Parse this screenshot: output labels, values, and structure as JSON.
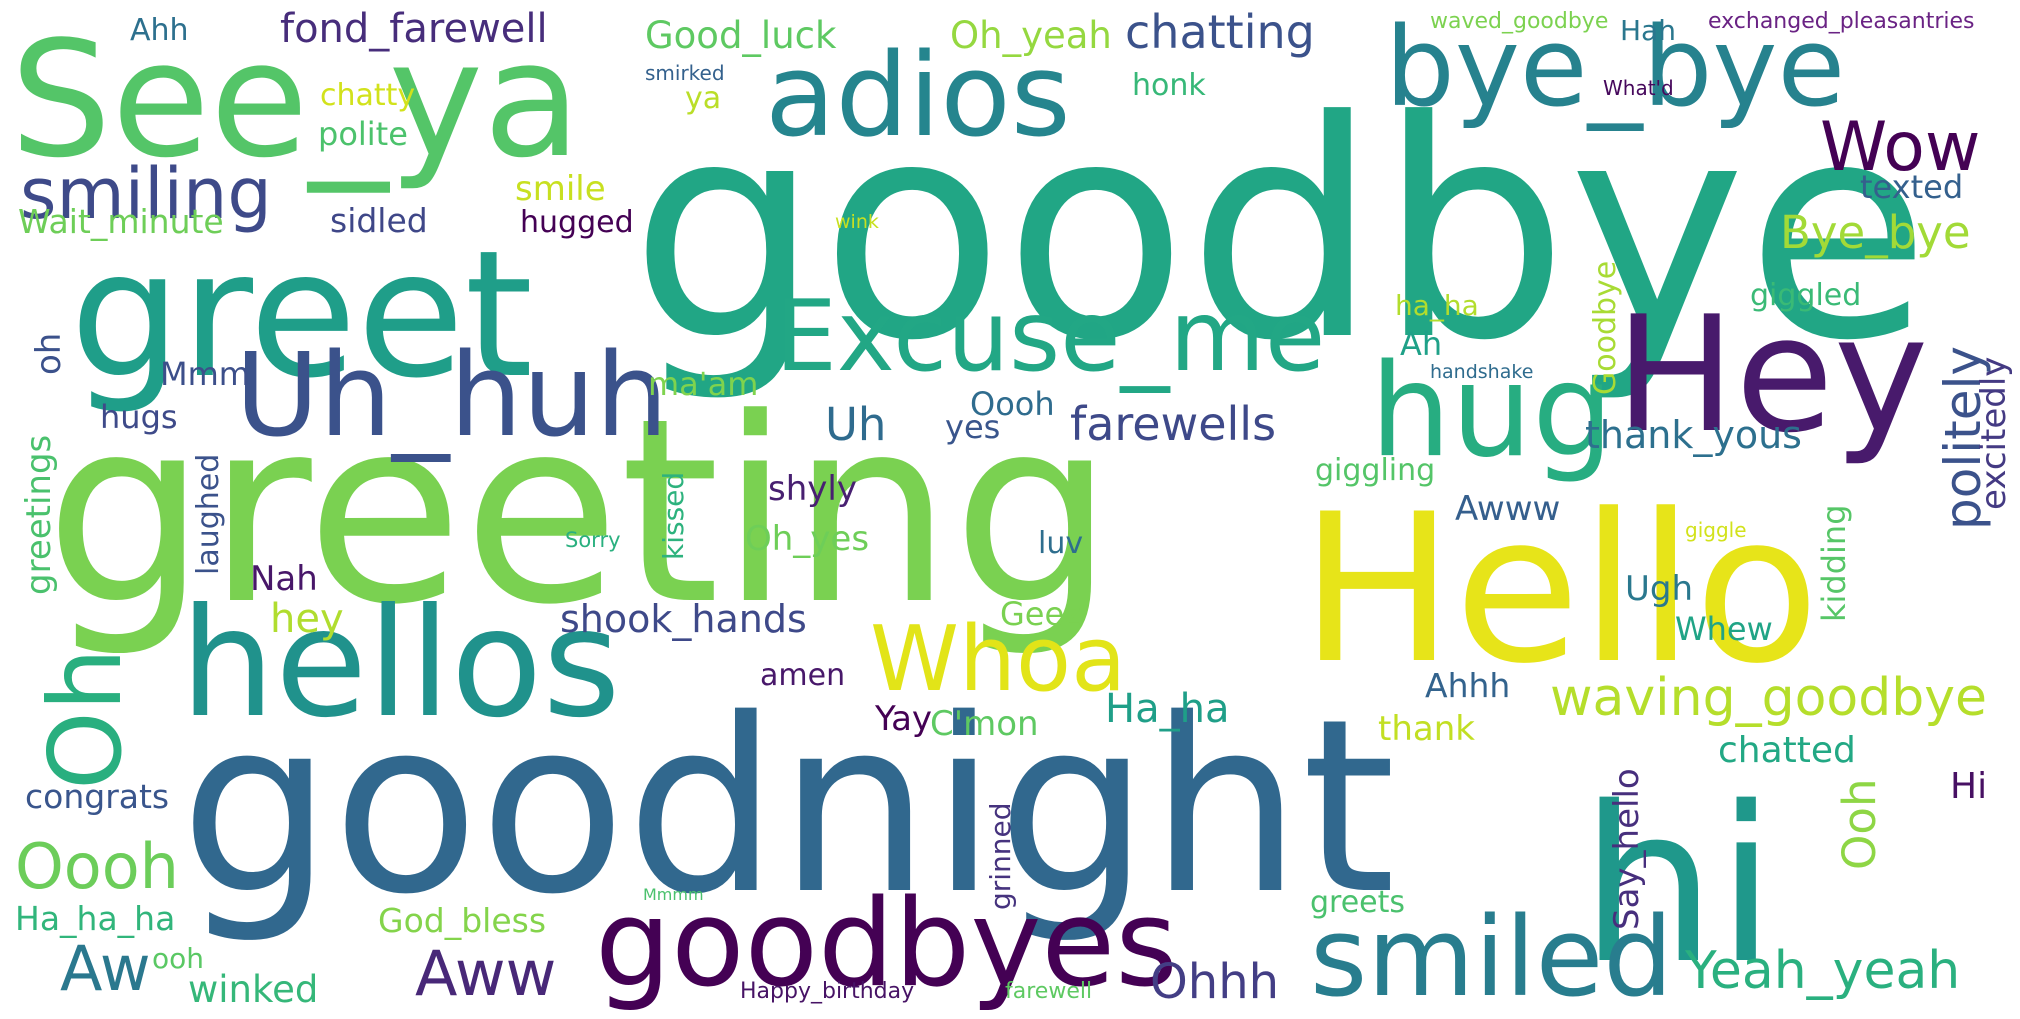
{
  "words": [
    {
      "text": "goodbye",
      "color": "#21a685"
    },
    {
      "text": "greeting",
      "color": "#7ad151"
    },
    {
      "text": "goodnight",
      "color": "#31688e"
    },
    {
      "text": "Hello",
      "color": "#e7e419"
    },
    {
      "text": "hi",
      "color": "#1f988b"
    },
    {
      "text": "See_ya",
      "color": "#54c568"
    },
    {
      "text": "greet",
      "color": "#1f9e89"
    },
    {
      "text": "hellos",
      "color": "#20928c"
    },
    {
      "text": "Hey",
      "color": "#481a6c"
    },
    {
      "text": "adios",
      "color": "#25858e"
    },
    {
      "text": "bye_bye",
      "color": "#26828e"
    },
    {
      "text": "Uh_huh",
      "color": "#3b528b"
    },
    {
      "text": "Excuse_me",
      "color": "#22a785"
    },
    {
      "text": "hug",
      "color": "#27ad81"
    },
    {
      "text": "goodbyes",
      "color": "#440154"
    },
    {
      "text": "smiled",
      "color": "#287d8e"
    },
    {
      "text": "Whoa",
      "color": "#e2e418"
    },
    {
      "text": "Oh",
      "color": "#29af7f"
    },
    {
      "text": "smiling",
      "color": "#3e4a89"
    },
    {
      "text": "Wow",
      "color": "#440154"
    },
    {
      "text": "Oooh",
      "color": "#6ccd5a"
    },
    {
      "text": "waving_goodbye",
      "color": "#b5de2b"
    },
    {
      "text": "Yeah_yeah",
      "color": "#2ab07f"
    },
    {
      "text": "Aw",
      "color": "#2a788e"
    },
    {
      "text": "Aww",
      "color": "#482878"
    },
    {
      "text": "chatting",
      "color": "#3b528b"
    },
    {
      "text": "fond_farewell",
      "color": "#472d7b"
    },
    {
      "text": "farewells",
      "color": "#3e4989"
    },
    {
      "text": "politely",
      "color": "#3b528b"
    },
    {
      "text": "Bye_bye",
      "color": "#a2da37"
    },
    {
      "text": "Good_luck",
      "color": "#5ec962"
    },
    {
      "text": "Oh_yeah",
      "color": "#95d840"
    },
    {
      "text": "Ohhh",
      "color": "#433e85"
    },
    {
      "text": "shook_hands",
      "color": "#3e4989"
    },
    {
      "text": "thank_yous",
      "color": "#2d708e"
    },
    {
      "text": "Ooh",
      "color": "#8ed645"
    },
    {
      "text": "chatted",
      "color": "#22a884"
    },
    {
      "text": "Say_hello",
      "color": "#472f7d"
    },
    {
      "text": "Ha_ha",
      "color": "#1f9f88"
    },
    {
      "text": "excitedly",
      "color": "#443a83"
    },
    {
      "text": "greetings",
      "color": "#4ac16d"
    },
    {
      "text": "Ha_ha_ha",
      "color": "#31b57b"
    },
    {
      "text": "God_bless",
      "color": "#84d44b"
    },
    {
      "text": "winked",
      "color": "#35b779"
    },
    {
      "text": "Oooh",
      "color": "#2f6c8e"
    },
    {
      "text": "Uh",
      "color": "#2f6b8e"
    },
    {
      "text": "shyly",
      "color": "#482071"
    },
    {
      "text": "Oh_yes",
      "color": "#6ece58"
    },
    {
      "text": "hugs",
      "color": "#3e4a89"
    },
    {
      "text": "congrats",
      "color": "#39558c"
    },
    {
      "text": "Awww",
      "color": "#355f8d"
    },
    {
      "text": "Goodbye",
      "color": "#a8db34"
    },
    {
      "text": "giggled",
      "color": "#3aba76"
    },
    {
      "text": "sidled",
      "color": "#3f4788"
    },
    {
      "text": "hugged",
      "color": "#440154"
    },
    {
      "text": "smile",
      "color": "#c8e020"
    },
    {
      "text": "polite",
      "color": "#4cc26c"
    },
    {
      "text": "Wait_minute",
      "color": "#6ece58"
    },
    {
      "text": "texted",
      "color": "#34608d"
    },
    {
      "text": "Mmm",
      "color": "#3c4f8a"
    },
    {
      "text": "oh",
      "color": "#3b518b"
    },
    {
      "text": "yes",
      "color": "#39558c"
    },
    {
      "text": "ma'am",
      "color": "#7fd34e"
    },
    {
      "text": "kidding",
      "color": "#56c667"
    },
    {
      "text": "Ahhh",
      "color": "#33638d"
    },
    {
      "text": "Nah",
      "color": "#481769"
    },
    {
      "text": "Ugh",
      "color": "#2a788e"
    },
    {
      "text": "Whew",
      "color": "#20a486"
    },
    {
      "text": "Geez",
      "color": "#7ad151"
    },
    {
      "text": "hey",
      "color": "#b0dd2f"
    },
    {
      "text": "Hi",
      "color": "#471063"
    },
    {
      "text": "Yay",
      "color": "#440154"
    },
    {
      "text": "C'mon",
      "color": "#5ec962"
    },
    {
      "text": "thank",
      "color": "#c2df23"
    },
    {
      "text": "amen",
      "color": "#48186a"
    },
    {
      "text": "laughed",
      "color": "#3b528b"
    },
    {
      "text": "kissed",
      "color": "#2db27d"
    },
    {
      "text": "grinned",
      "color": "#46337e"
    },
    {
      "text": "Ah",
      "color": "#1fa188"
    },
    {
      "text": "ha_ha",
      "color": "#b2dd2d"
    },
    {
      "text": "giggling",
      "color": "#54c568"
    },
    {
      "text": "greets",
      "color": "#4ac16d"
    },
    {
      "text": "Ahh",
      "color": "#2d708e"
    },
    {
      "text": "ya",
      "color": "#bade28"
    },
    {
      "text": "honk",
      "color": "#37b878"
    },
    {
      "text": "chatty",
      "color": "#d2e21b"
    },
    {
      "text": "luv",
      "color": "#2e6e8e"
    },
    {
      "text": "Hah",
      "color": "#2a778e"
    },
    {
      "text": "ooh",
      "color": "#5ac864"
    },
    {
      "text": "waved_goodbye",
      "color": "#7cd250"
    },
    {
      "text": "exchanged_pleasantries",
      "color": "#6a2384"
    },
    {
      "text": "What'd",
      "color": "#46085c"
    },
    {
      "text": "smirked",
      "color": "#34618d"
    },
    {
      "text": "handshake",
      "color": "#2f6c8e"
    },
    {
      "text": "Sorry",
      "color": "#2ab07f"
    },
    {
      "text": "wink",
      "color": "#c8e020"
    },
    {
      "text": "giggle",
      "color": "#d2e21b"
    },
    {
      "text": "Mmmm",
      "color": "#4ac16d"
    },
    {
      "text": "Happy_birthday",
      "color": "#471365"
    },
    {
      "text": "farewell",
      "color": "#5ec962"
    }
  ]
}
